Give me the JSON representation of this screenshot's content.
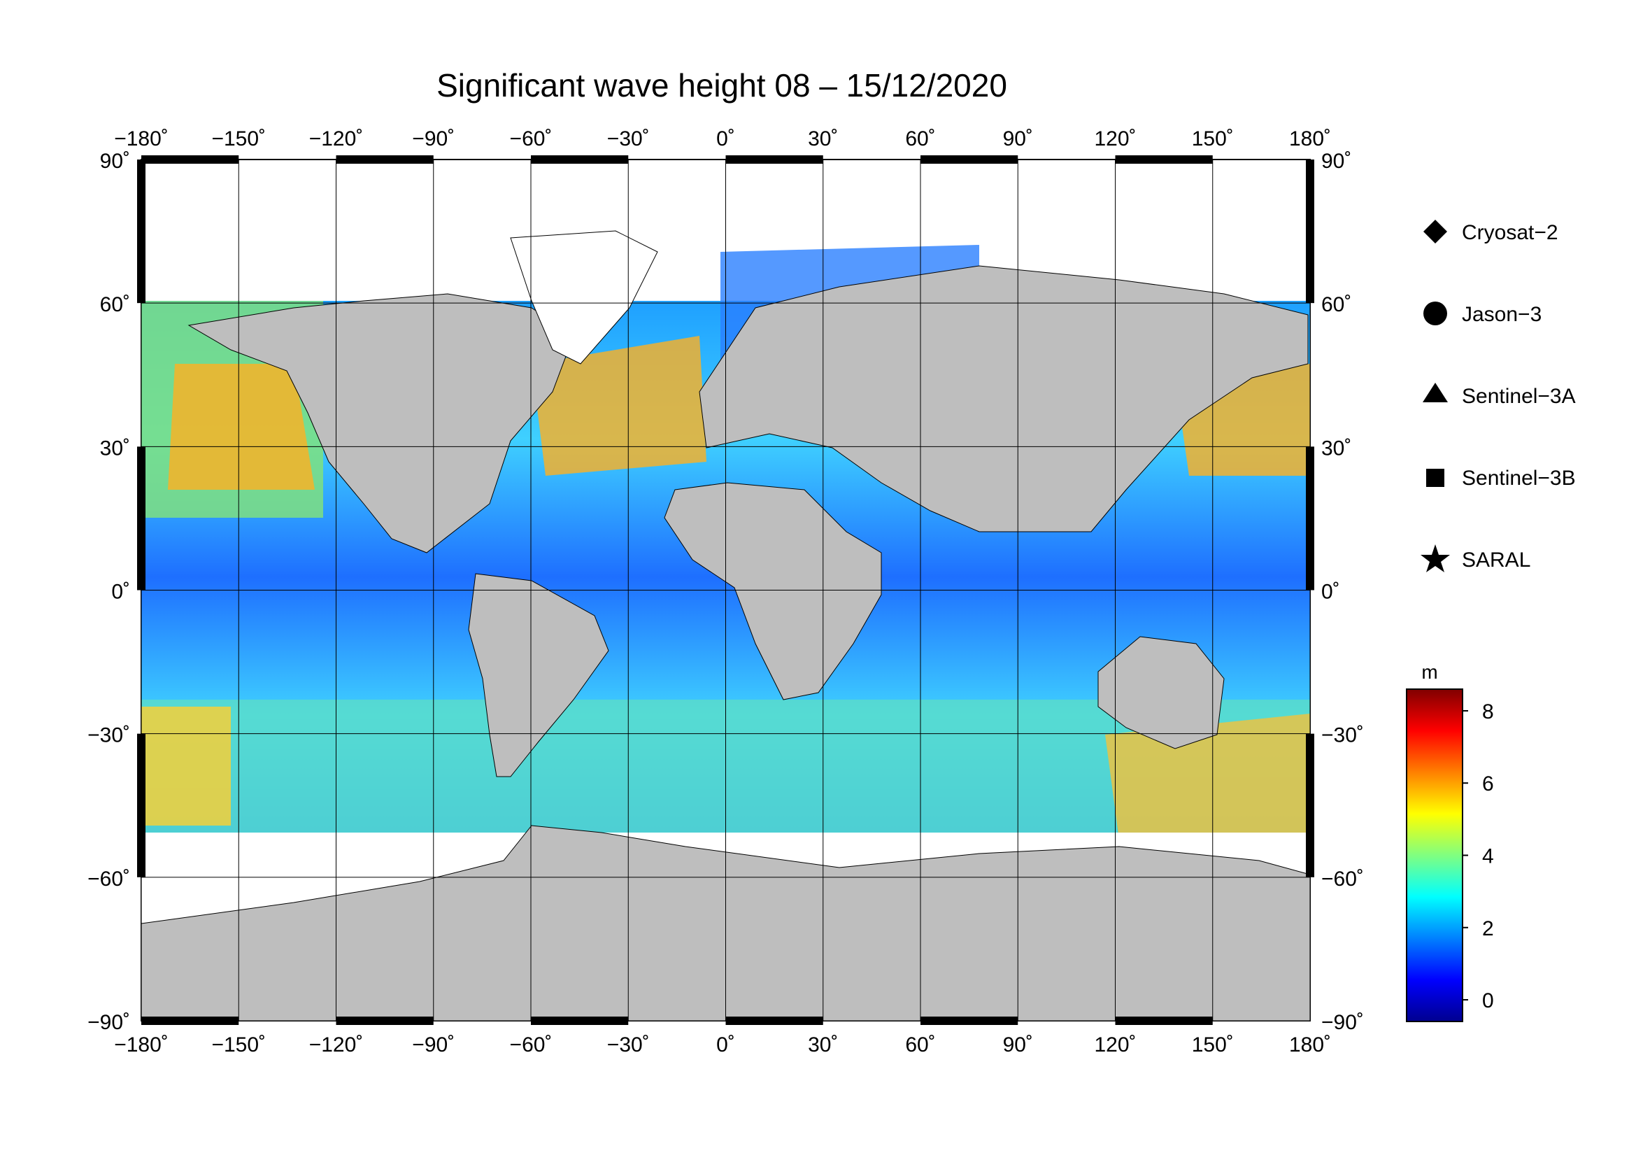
{
  "title": "Significant wave height 08 – 15/12/2020",
  "map": {
    "lon_ticks": [
      "−180˚",
      "−150˚",
      "−120˚",
      "−90˚",
      "−60˚",
      "−30˚",
      "0˚",
      "30˚",
      "60˚",
      "90˚",
      "120˚",
      "150˚",
      "180˚"
    ],
    "lat_ticks": [
      "90˚",
      "60˚",
      "30˚",
      "0˚",
      "−30˚",
      "−60˚",
      "−90˚"
    ],
    "lon_range": [
      -180,
      180
    ],
    "lat_range": [
      -90,
      90
    ],
    "grid_spacing_deg": 30,
    "land_color": "#bebebe",
    "ice_color": "#ffffff"
  },
  "legend": {
    "items": [
      {
        "label": "Cryosat−2",
        "symbol": "diamond"
      },
      {
        "label": "Jason−3",
        "symbol": "circle"
      },
      {
        "label": "Sentinel−3A",
        "symbol": "triangle"
      },
      {
        "label": "Sentinel−3B",
        "symbol": "square"
      },
      {
        "label": "SARAL",
        "symbol": "star"
      }
    ]
  },
  "colorbar": {
    "unit": "m",
    "ticks": [
      "8",
      "6",
      "4",
      "2",
      "0"
    ],
    "range": [
      -0.6,
      8.6
    ],
    "colors": [
      "#00008f",
      "#0000ff",
      "#0080ff",
      "#00ffff",
      "#80ff80",
      "#ffff00",
      "#ff8000",
      "#ff0000",
      "#800000"
    ]
  }
}
